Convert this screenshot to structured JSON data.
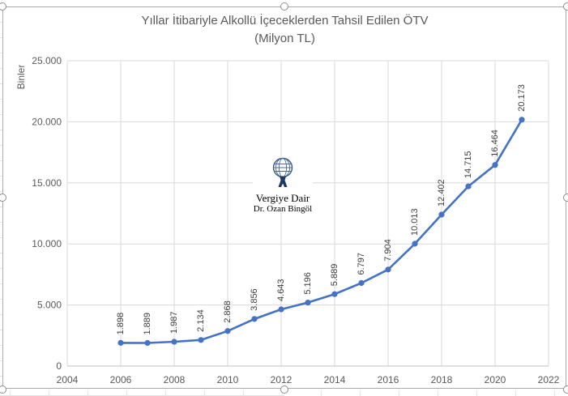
{
  "chart_data": {
    "type": "line",
    "title": "Yıllar İtibariyle Alkollü İçeceklerden Tahsil Edilen ÖTV",
    "subtitle": "(Milyon TL)",
    "ylabel": "Binler",
    "xlabel": "",
    "x": [
      2006,
      2007,
      2008,
      2009,
      2010,
      2011,
      2012,
      2013,
      2014,
      2015,
      2016,
      2017,
      2018,
      2019,
      2020,
      2021
    ],
    "values": [
      1898,
      1889,
      1987,
      2134,
      2868,
      3856,
      4643,
      5196,
      5889,
      6797,
      7904,
      10013,
      12402,
      14715,
      16464,
      20173
    ],
    "point_labels": [
      "1.898",
      "1.889",
      "1.987",
      "2.134",
      "2.868",
      "3.856",
      "4.643",
      "5.196",
      "5.889",
      "6.797",
      "7.904",
      "10.013",
      "12.402",
      "14.715",
      "16.464",
      "20.173"
    ],
    "x_ticks": [
      2004,
      2006,
      2008,
      2010,
      2012,
      2014,
      2016,
      2018,
      2020,
      2022
    ],
    "y_tick_values": [
      0,
      5000,
      10000,
      15000,
      20000,
      25000
    ],
    "y_tick_labels": [
      "0",
      "5.000",
      "10.000",
      "15.000",
      "20.000",
      "25.000"
    ],
    "xlim": [
      2004,
      2022
    ],
    "ylim": [
      0,
      25000
    ],
    "grid": true,
    "legend_position": "none",
    "data_label_rotation": -90,
    "series_color": "#4472C4"
  },
  "watermark": {
    "logo_icon": "atlas-globe-logo",
    "line1": "Vergiye Dair",
    "line2": "Dr. Ozan Bingöl",
    "text_color": "#1F3864"
  },
  "selection": {
    "chart_selected": true,
    "handles": [
      "top-left",
      "top-center",
      "top-right",
      "middle-left",
      "middle-right",
      "bottom-left",
      "bottom-center",
      "bottom-right"
    ]
  },
  "colors": {
    "grid": "#D9D9D9",
    "axis_line": "#BFBFBF",
    "tick_text": "#595959",
    "title_text": "#595959",
    "data_label_text": "#404040",
    "frame_border": "#ABABAB",
    "handle_border": "#8C8C8C"
  }
}
